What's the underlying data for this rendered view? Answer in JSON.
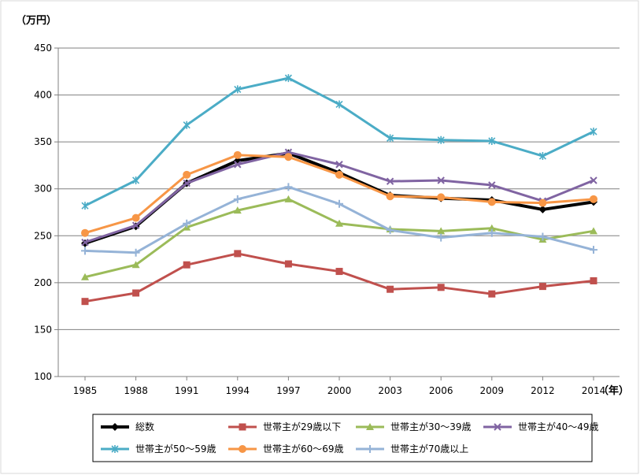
{
  "chart_data": {
    "type": "line",
    "y_unit_label": "（万円）",
    "x_unit_label": "（年）",
    "ylim": [
      100,
      450
    ],
    "yticks": [
      100,
      150,
      200,
      250,
      300,
      350,
      400,
      450
    ],
    "grid": true,
    "legend_position": "bottom",
    "x": [
      "1985",
      "1988",
      "1991",
      "1994",
      "1997",
      "2000",
      "2003",
      "2006",
      "2009",
      "2012",
      "2014"
    ],
    "series": [
      {
        "name": "総数",
        "color": "#000000",
        "marker": "diamond",
        "values": [
          242,
          260,
          306,
          330,
          338,
          317,
          293,
          290,
          288,
          278,
          286
        ]
      },
      {
        "name": "世帯主が29歳以下",
        "color": "#c0504d",
        "marker": "square",
        "values": [
          180,
          189,
          219,
          231,
          220,
          212,
          193,
          195,
          188,
          196,
          202
        ]
      },
      {
        "name": "世帯主が30～39歳",
        "color": "#9bbb59",
        "marker": "triangle",
        "values": [
          206,
          219,
          259,
          277,
          289,
          263,
          257,
          255,
          258,
          246,
          255
        ]
      },
      {
        "name": "世帯主が40～49歳",
        "color": "#8064a2",
        "marker": "x",
        "values": [
          243,
          261,
          306,
          326,
          339,
          326,
          308,
          309,
          304,
          287,
          309
        ]
      },
      {
        "name": "世帯主が50～59歳",
        "color": "#4bacc6",
        "marker": "star",
        "values": [
          282,
          309,
          368,
          406,
          418,
          390,
          354,
          352,
          351,
          335,
          361
        ]
      },
      {
        "name": "世帯主が60～69歳",
        "color": "#f79646",
        "marker": "circle",
        "values": [
          253,
          269,
          315,
          336,
          334,
          315,
          292,
          291,
          286,
          285,
          289
        ]
      },
      {
        "name": "世帯主が70歳以上",
        "color": "#95b3d7",
        "marker": "plus",
        "values": [
          234,
          232,
          263,
          289,
          302,
          284,
          256,
          248,
          253,
          249,
          235
        ]
      }
    ]
  }
}
